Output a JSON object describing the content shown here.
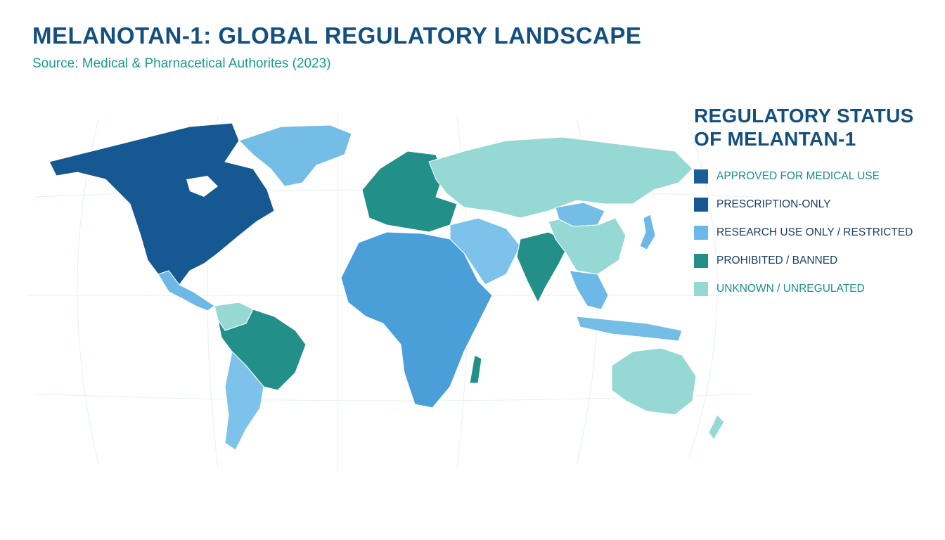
{
  "header": {
    "title": "MELANOTAN-1: GLOBAL REGULATORY LANDSCAPE",
    "subtitle": "Source: Medical & Pharnacetical Authorites (2023)"
  },
  "legend": {
    "title_line1": "REGULATORY STATUS",
    "title_line2": "OF MELANTAN-1",
    "items": [
      {
        "label": "APPROVED FOR MEDICAL USE",
        "color": "#1a5d99"
      },
      {
        "label": "PRESCRIPTION-ONLY",
        "color": "#165891"
      },
      {
        "label": "RESEARCH USE ONLY / RESTRICTED",
        "color": "#6cb8e6"
      },
      {
        "label": "PROHIBITED / BANNED",
        "color": "#238f89"
      },
      {
        "label": "UNKNOWN / UNREGULATED",
        "color": "#96d8d4"
      }
    ]
  },
  "colors": {
    "title": "#14507f",
    "subtitle": "#1a9a91",
    "map_background": "#ffffff",
    "graticule": "#e4f2f1"
  },
  "map_regions": [
    {
      "region": "North America",
      "status": "PRESCRIPTION-ONLY"
    },
    {
      "region": "Greenland",
      "status": "RESEARCH USE ONLY / RESTRICTED"
    },
    {
      "region": "Central America",
      "status": "RESEARCH USE ONLY / RESTRICTED"
    },
    {
      "region": "Brazil & Andes",
      "status": "PROHIBITED / BANNED"
    },
    {
      "region": "Southern South America",
      "status": "RESEARCH USE ONLY / RESTRICTED"
    },
    {
      "region": "Europe",
      "status": "PROHIBITED / BANNED"
    },
    {
      "region": "Africa",
      "status": "RESEARCH USE ONLY / RESTRICTED"
    },
    {
      "region": "Middle East",
      "status": "RESEARCH USE ONLY / RESTRICTED"
    },
    {
      "region": "India",
      "status": "PROHIBITED / BANNED"
    },
    {
      "region": "Russia & Central Asia",
      "status": "UNKNOWN / UNREGULATED"
    },
    {
      "region": "China",
      "status": "UNKNOWN / UNREGULATED"
    },
    {
      "region": "Mongolia",
      "status": "RESEARCH USE ONLY / RESTRICTED"
    },
    {
      "region": "Southeast Asia",
      "status": "RESEARCH USE ONLY / RESTRICTED"
    },
    {
      "region": "Australia",
      "status": "UNKNOWN / UNREGULATED"
    }
  ]
}
